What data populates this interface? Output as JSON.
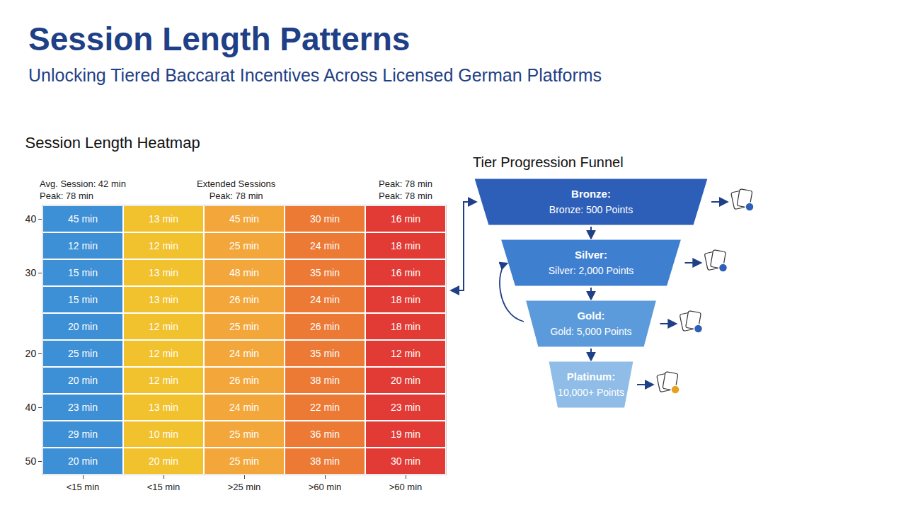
{
  "header": {
    "title": "Session Length Patterns",
    "subtitle": "Unlocking Tiered Baccarat Incentives Across Licensed German Platforms"
  },
  "chart_data": {
    "type": "heatmap",
    "title": "Session Length Heatmap",
    "notes": [
      [
        "Avg. Session: 42 min",
        "Peak: 78 min"
      ],
      [
        "Extended Sessions",
        "Peak: 78 min"
      ],
      [
        "Peak: 78 min",
        "Peak: 78 min"
      ]
    ],
    "columns": [
      "<15 min",
      "<15 min",
      ">25 min",
      ">60 min",
      ">60 min"
    ],
    "rows": [
      "40",
      null,
      "30",
      null,
      null,
      "20",
      null,
      "40",
      null,
      "50"
    ],
    "cells": [
      [
        45,
        13,
        45,
        30,
        16
      ],
      [
        12,
        12,
        25,
        24,
        18
      ],
      [
        15,
        13,
        48,
        35,
        16
      ],
      [
        15,
        13,
        26,
        24,
        18
      ],
      [
        20,
        12,
        25,
        26,
        18
      ],
      [
        25,
        12,
        24,
        35,
        12
      ],
      [
        20,
        12,
        26,
        38,
        20
      ],
      [
        23,
        13,
        24,
        22,
        23
      ],
      [
        29,
        10,
        25,
        36,
        19
      ],
      [
        20,
        20,
        25,
        38,
        30
      ]
    ],
    "value_labels": [
      [
        "45 min",
        "13 min",
        "45 min",
        "30 min",
        "16 min"
      ],
      [
        "12 min",
        "12 min",
        "25 min",
        "24 min",
        "18 min"
      ],
      [
        "15 min",
        "13 min",
        "48 min",
        "35 min",
        "16 min"
      ],
      [
        "15 min",
        "13 min",
        "26 min",
        "24 min",
        "18 min"
      ],
      [
        "20 min",
        "12 min",
        "25 min",
        "26 min",
        "18 min"
      ],
      [
        "25 min",
        "12 min",
        "24 min",
        "35 min",
        "12 min"
      ],
      [
        "20 min",
        "12 min",
        "26 min",
        "38 min",
        "20 min"
      ],
      [
        "23 min",
        "13 min",
        "24 min",
        "22 min",
        "23 min"
      ],
      [
        "29 min",
        "10 min",
        "25 min",
        "36 min",
        "19 min"
      ],
      [
        "20 min",
        "20 min",
        "25 min",
        "38 min",
        "30 min"
      ]
    ],
    "colors": [
      "#3d8fd6",
      "#f2c12e",
      "#f3a73a",
      "#ec7a35",
      "#e23a35"
    ]
  },
  "funnel": {
    "title": "Tier Progression Funnel",
    "stages": [
      {
        "name": "Bronze:",
        "label": "Bronze: 500 Points",
        "color": "#2d5fb8"
      },
      {
        "name": "Silver:",
        "label": "Silver: 2,000 Points",
        "color": "#3f7fcf"
      },
      {
        "name": "Gold:",
        "label": "Gold: 5,000 Points",
        "color": "#5c9bdb"
      },
      {
        "name": "Platinum:",
        "label": "10,000+ Points",
        "color": "#8fbde8"
      }
    ]
  }
}
